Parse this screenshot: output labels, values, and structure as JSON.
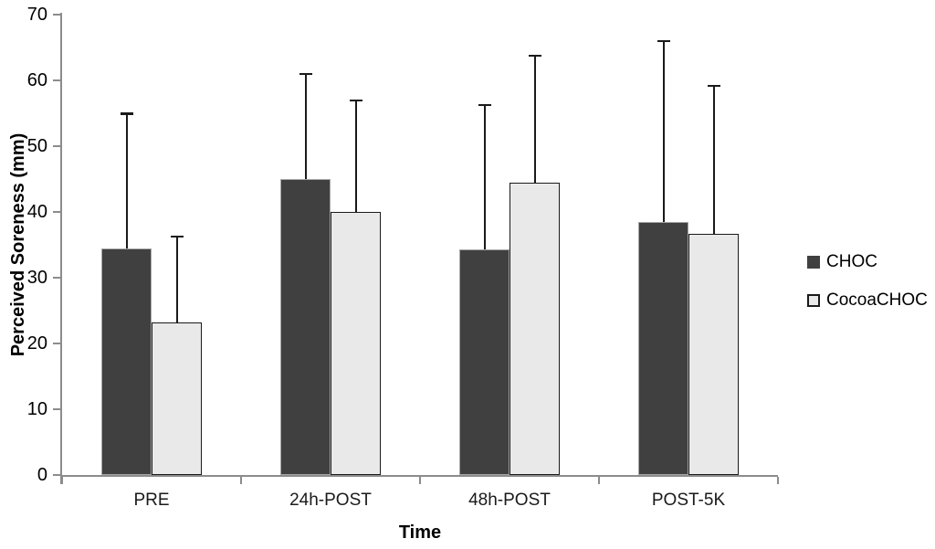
{
  "chart_data": {
    "type": "bar",
    "title": "",
    "xlabel": "Time",
    "ylabel": "Perceived Soreness (mm)",
    "categories": [
      "PRE",
      "24h-POST",
      "48h-POST",
      "POST-5K"
    ],
    "series": [
      {
        "name": "CHOC",
        "fill": "#404040",
        "border": "#a6a6a6",
        "values": [
          34.5,
          45.0,
          34.3,
          38.5
        ],
        "errors_up": [
          20.5,
          16.0,
          22.0,
          27.5
        ]
      },
      {
        "name": "CocoaCHOC",
        "fill": "#e9e9e9",
        "border": "#1a1a1a",
        "values": [
          23.2,
          40.0,
          44.5,
          36.7
        ],
        "errors_up": [
          13.1,
          17.0,
          19.3,
          22.5
        ]
      }
    ],
    "ylim": [
      0,
      70
    ],
    "ytick_step": 10,
    "grid": false,
    "legend_position": "right",
    "error_bars": "upper-only",
    "axis_color": "#8c8c8c",
    "error_color": "#1a1a1a",
    "background": "#ffffff"
  }
}
